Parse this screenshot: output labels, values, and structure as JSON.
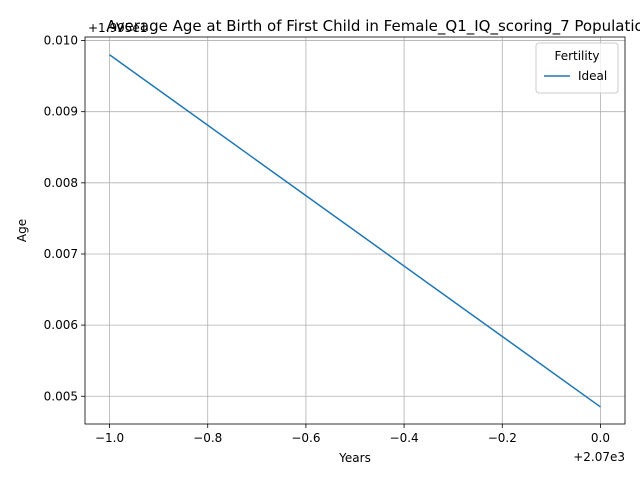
{
  "chart_data": {
    "type": "line",
    "title": "Average Age at Birth of First Child in Female_Q1_IQ_scoring_7 Populatio",
    "xlabel": "Years",
    "ylabel": "Age",
    "x_offset_label": "+2.07e3",
    "y_offset_label": "+1.995e1",
    "x": [
      -1.0,
      0.0
    ],
    "xlim": [
      -1.05,
      0.05
    ],
    "ylim": [
      0.00461,
      0.01005
    ],
    "x_ticks": [
      -1.0,
      -0.8,
      -0.6,
      -0.4,
      -0.2,
      0.0
    ],
    "x_tick_labels": [
      "−1.0",
      "−0.8",
      "−0.6",
      "−0.4",
      "−0.2",
      "0.0"
    ],
    "y_ticks": [
      0.005,
      0.006,
      0.007,
      0.008,
      0.009,
      0.01
    ],
    "y_tick_labels": [
      "0.005",
      "0.006",
      "0.007",
      "0.008",
      "0.009",
      "0.010"
    ],
    "grid": true,
    "legend": {
      "title": "Fertility",
      "placement": "top-right"
    },
    "series": [
      {
        "name": "Ideal",
        "color": "#1f77b4",
        "values": [
          0.0098,
          0.00485
        ]
      }
    ]
  }
}
